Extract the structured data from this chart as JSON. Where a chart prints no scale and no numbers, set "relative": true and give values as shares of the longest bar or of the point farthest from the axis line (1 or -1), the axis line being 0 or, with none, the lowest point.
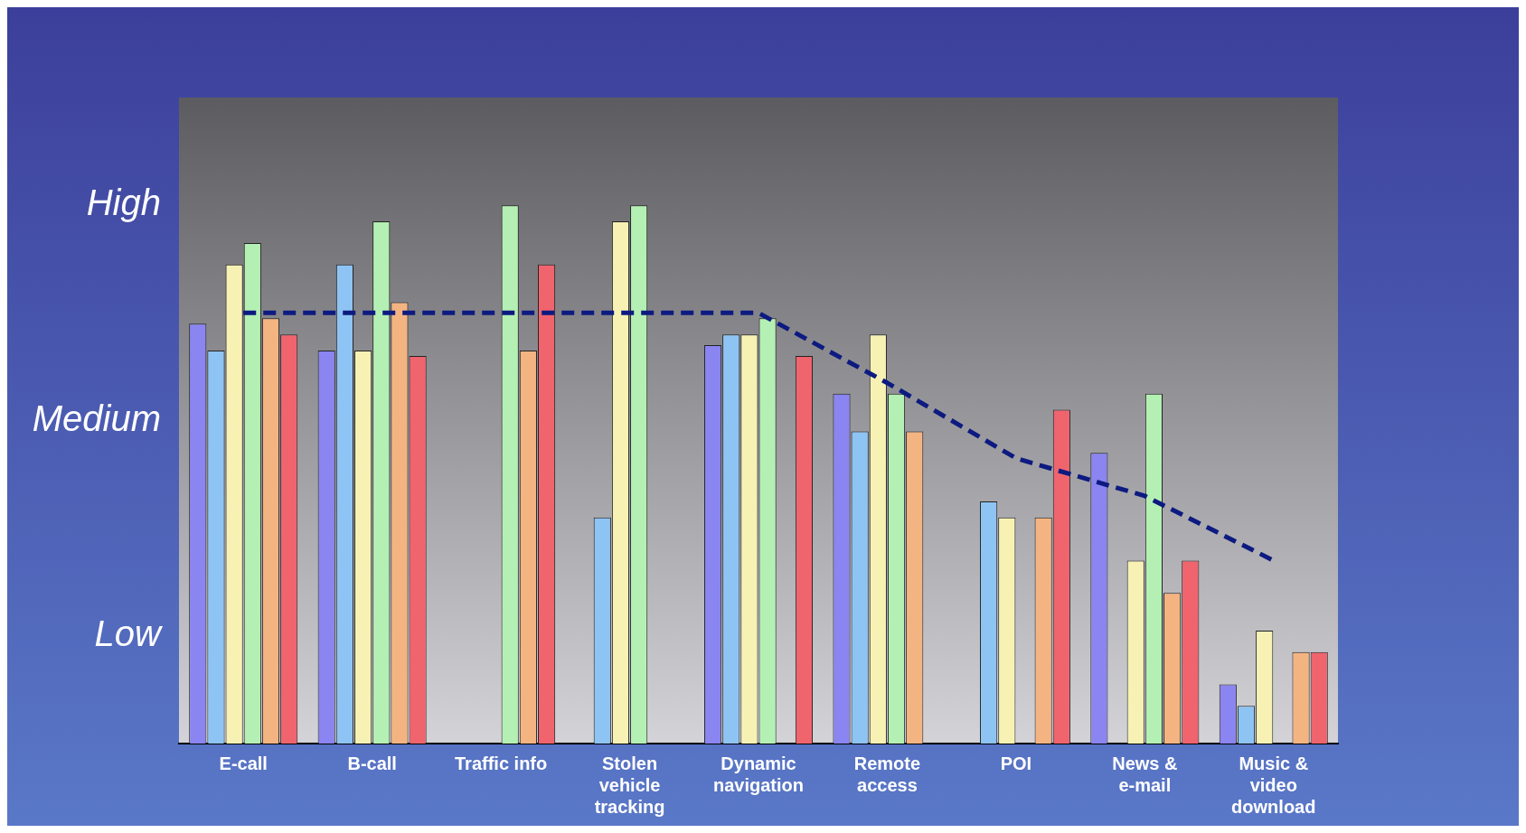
{
  "chart_data": {
    "type": "bar",
    "categories": [
      "E-call",
      "B-call",
      "Traffic info",
      "Stolen vehicle tracking",
      "Dynamic navigation",
      "Remote access",
      "POI",
      "News & e-mail",
      "Music & video download"
    ],
    "relative": true,
    "annotations": [
      "High",
      "Medium",
      "Low"
    ],
    "legend": false,
    "series": [
      {
        "color": "#8a85f0",
        "values": [
          0.78,
          0.73,
          null,
          null,
          0.74,
          0.65,
          null,
          0.54,
          0.11
        ]
      },
      {
        "color": "#8ec4f4",
        "values": [
          0.73,
          0.89,
          null,
          0.42,
          0.76,
          0.58,
          0.45,
          null,
          0.07
        ]
      },
      {
        "color": "#f7f2b4",
        "values": [
          0.89,
          0.73,
          null,
          0.97,
          0.76,
          0.76,
          0.42,
          0.34,
          0.21
        ]
      },
      {
        "color": "#b4f0b4",
        "values": [
          0.93,
          0.97,
          1,
          1,
          0.79,
          0.65,
          null,
          0.65,
          null
        ]
      },
      {
        "color": "#f4b482",
        "values": [
          0.79,
          0.82,
          0.73,
          null,
          null,
          0.58,
          0.42,
          0.28,
          0.17
        ]
      },
      {
        "color": "#f0646e",
        "values": [
          0.76,
          0.72,
          0.89,
          null,
          0.72,
          null,
          0.62,
          0.34,
          0.17
        ]
      },
      {
        "type": "line",
        "color": "#0d1a80",
        "line_style": "dashed",
        "marker": "none",
        "values": [
          0.8,
          0.8,
          0.8,
          0.8,
          0.8,
          0.67,
          0.53,
          0.46,
          0.34
        ]
      }
    ]
  }
}
